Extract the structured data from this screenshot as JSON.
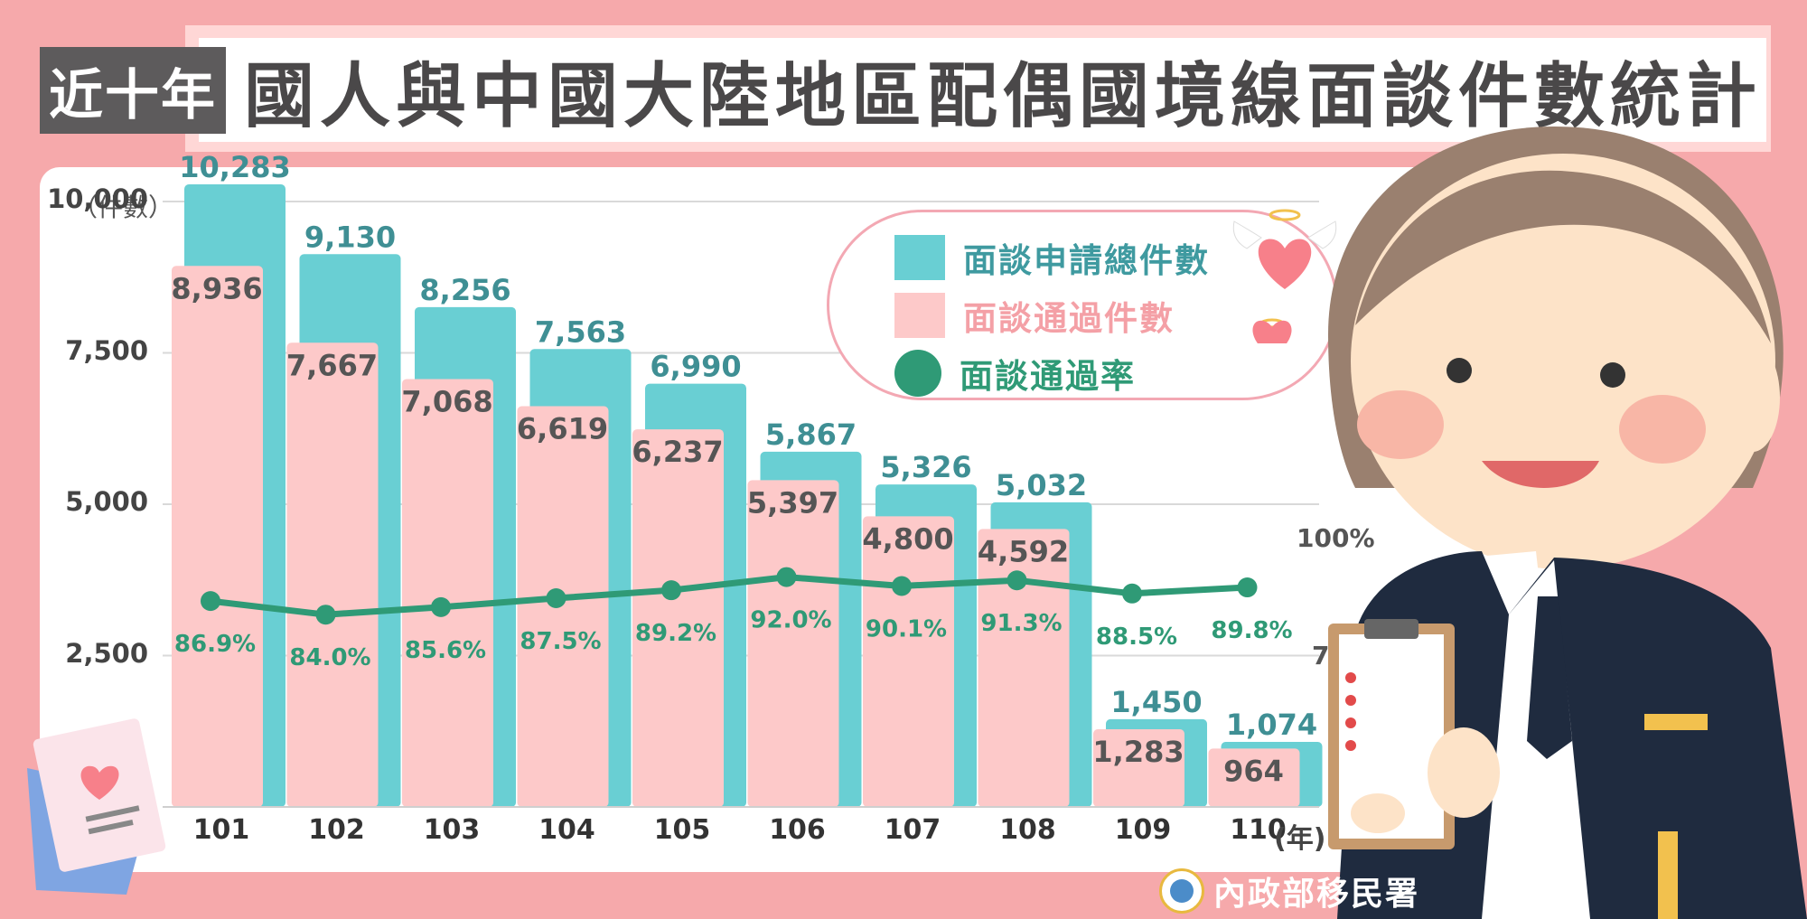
{
  "header": {
    "tag": "近十年",
    "title": "國人與中國大陸地區配偶國境線面談件數統計"
  },
  "source": "內政部移民署",
  "colors": {
    "background": "#f6a9ab",
    "applied": "#69cfd3",
    "applied_label": "#3f8f94",
    "passed": "#fdc9c9",
    "passed_label": "#555555",
    "rate": "#2f9a76",
    "rate_label": "#2f9a76"
  },
  "chart_data": {
    "type": "bar",
    "y_unit_label": "（件數）",
    "x_unit_label": "(年)",
    "categories": [
      "101",
      "102",
      "103",
      "104",
      "105",
      "106",
      "107",
      "108",
      "109",
      "110"
    ],
    "ylim": [
      0,
      10500
    ],
    "yticks": [
      {
        "value": 2500,
        "label": "2,500"
      },
      {
        "value": 5000,
        "label": "5,000"
      },
      {
        "value": 7500,
        "label": "7,500"
      },
      {
        "value": 10000,
        "label": "10,000"
      }
    ],
    "right_axis_ticks": [
      {
        "value": 75,
        "label": "75%"
      },
      {
        "value": 100,
        "label": "100%"
      }
    ],
    "grid": true,
    "legend_position": "top-right",
    "series": [
      {
        "name": "面談申請總件數",
        "type": "bar",
        "values": [
          10283,
          9130,
          8256,
          7563,
          6990,
          5867,
          5326,
          5032,
          1450,
          1074
        ],
        "labels": [
          "10,283",
          "9,130",
          "8,256",
          "7,563",
          "6,990",
          "5,867",
          "5,326",
          "5,032",
          "1,450",
          "1,074"
        ]
      },
      {
        "name": "面談通過件數",
        "type": "bar",
        "values": [
          8936,
          7667,
          7068,
          6619,
          6237,
          5397,
          4800,
          4592,
          1283,
          964
        ],
        "labels": [
          "8,936",
          "7,667",
          "7,068",
          "6,619",
          "6,237",
          "5,397",
          "4,800",
          "4,592",
          "1,283",
          "964"
        ]
      },
      {
        "name": "面談通過率",
        "type": "line",
        "unit": "%",
        "values": [
          86.9,
          84.0,
          85.6,
          87.5,
          89.2,
          92.0,
          90.1,
          91.3,
          88.5,
          89.8
        ],
        "labels": [
          "86.9%",
          "84.0%",
          "85.6%",
          "87.5%",
          "89.2%",
          "92.0%",
          "90.1%",
          "91.3%",
          "88.5%",
          "89.8%"
        ]
      }
    ]
  }
}
